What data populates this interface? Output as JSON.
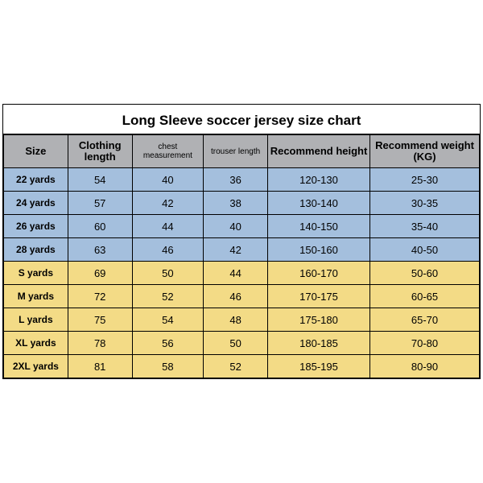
{
  "title": "Long Sleeve soccer jersey size chart",
  "colors": {
    "header_bg": "#b0b1b4",
    "group_a_bg": "#a4bfdd",
    "group_b_bg": "#f3db86",
    "border": "#000000",
    "text": "#000000",
    "page_bg": "#ffffff"
  },
  "columns": [
    {
      "label": "Size",
      "small": false
    },
    {
      "label": "Clothing length",
      "small": false
    },
    {
      "label": "chest measurement",
      "small": true
    },
    {
      "label": "trouser length",
      "small": true
    },
    {
      "label": "Recommend height",
      "small": false
    },
    {
      "label": "Recommend weight (KG)",
      "small": false
    }
  ],
  "rows": [
    {
      "group": "a",
      "cells": [
        "22 yards",
        "54",
        "40",
        "36",
        "120-130",
        "25-30"
      ]
    },
    {
      "group": "a",
      "cells": [
        "24 yards",
        "57",
        "42",
        "38",
        "130-140",
        "30-35"
      ]
    },
    {
      "group": "a",
      "cells": [
        "26 yards",
        "60",
        "44",
        "40",
        "140-150",
        "35-40"
      ]
    },
    {
      "group": "a",
      "cells": [
        "28 yards",
        "63",
        "46",
        "42",
        "150-160",
        "40-50"
      ]
    },
    {
      "group": "b",
      "cells": [
        "S yards",
        "69",
        "50",
        "44",
        "160-170",
        "50-60"
      ]
    },
    {
      "group": "b",
      "cells": [
        "M yards",
        "72",
        "52",
        "46",
        "170-175",
        "60-65"
      ]
    },
    {
      "group": "b",
      "cells": [
        "L yards",
        "75",
        "54",
        "48",
        "175-180",
        "65-70"
      ]
    },
    {
      "group": "b",
      "cells": [
        "XL yards",
        "78",
        "56",
        "50",
        "180-185",
        "70-80"
      ]
    },
    {
      "group": "b",
      "cells": [
        "2XL yards",
        "81",
        "58",
        "52",
        "185-195",
        "80-90"
      ]
    }
  ]
}
